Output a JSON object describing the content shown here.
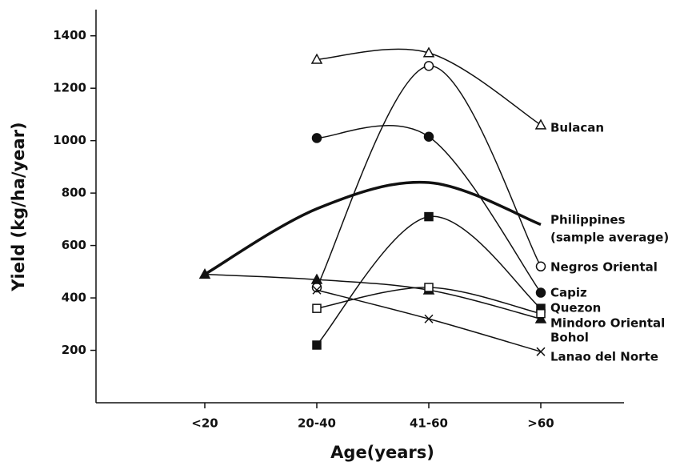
{
  "chart_data": {
    "type": "line",
    "x_label": "Age(years)",
    "y_label": "Yield (kg/ha/year)",
    "categories": [
      "<20",
      "20-40",
      "41-60",
      ">60"
    ],
    "ylim": [
      0,
      1500
    ],
    "yticks": [
      200,
      400,
      600,
      800,
      1000,
      1200,
      1400
    ],
    "series": [
      {
        "name": "Bulacan",
        "color": "#111111",
        "marker": "triangle-open",
        "width": 1.5,
        "values": [
          null,
          1310,
          1335,
          1060
        ]
      },
      {
        "name": "Philippines",
        "subname": "(sample average)",
        "color": "#111111",
        "marker": "none",
        "width": 3.5,
        "values": [
          490,
          740,
          840,
          680
        ]
      },
      {
        "name": "Negros Oriental",
        "color": "#111111",
        "marker": "circle-open",
        "width": 1.5,
        "values": [
          null,
          440,
          1285,
          520
        ]
      },
      {
        "name": "Capiz",
        "color": "#111111",
        "marker": "circle",
        "width": 1.5,
        "values": [
          null,
          1010,
          1015,
          420
        ]
      },
      {
        "name": "Quezon",
        "color": "#111111",
        "marker": "square",
        "width": 1.5,
        "values": [
          null,
          220,
          710,
          360
        ]
      },
      {
        "name": "Mindoro Oriental",
        "color": "#111111",
        "marker": "triangle",
        "width": 1.5,
        "values": [
          490,
          470,
          430,
          320
        ]
      },
      {
        "name": "Bohol",
        "color": "#111111",
        "marker": "square-open",
        "width": 1.5,
        "values": [
          null,
          360,
          440,
          340
        ]
      },
      {
        "name": "Lanao del Norte",
        "color": "#111111",
        "marker": "x",
        "width": 1.5,
        "values": [
          null,
          430,
          320,
          195
        ]
      }
    ]
  }
}
